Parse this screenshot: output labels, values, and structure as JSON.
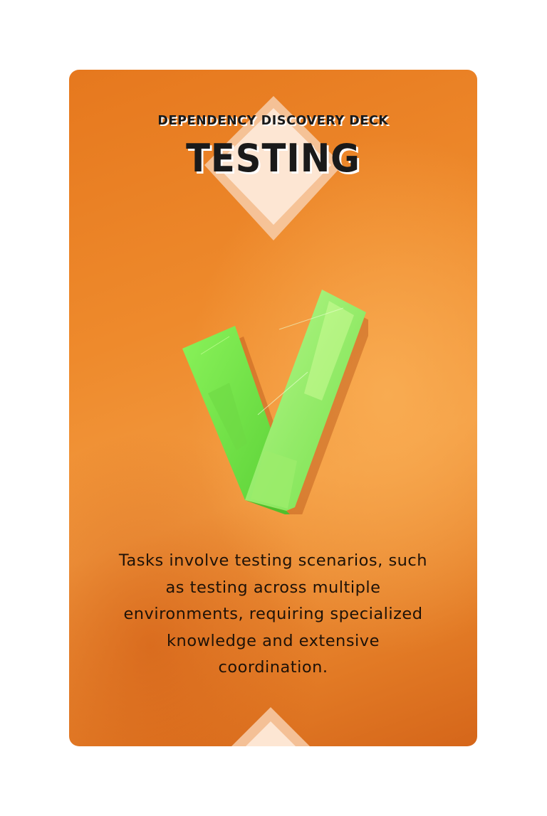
{
  "card": {
    "deck_name": "DEPENDENCY DISCOVERY DECK",
    "category": "TESTING",
    "description": "Tasks involve testing scenarios, such as testing across multiple environments, requiring specialized knowledge and extensive coordination.",
    "illustration": "green-paper-checkmark-icon",
    "colors": {
      "card_orange": "#ee8a2c",
      "checkmark_green": "#7be24a",
      "text_dark": "#1a1a1a"
    }
  }
}
